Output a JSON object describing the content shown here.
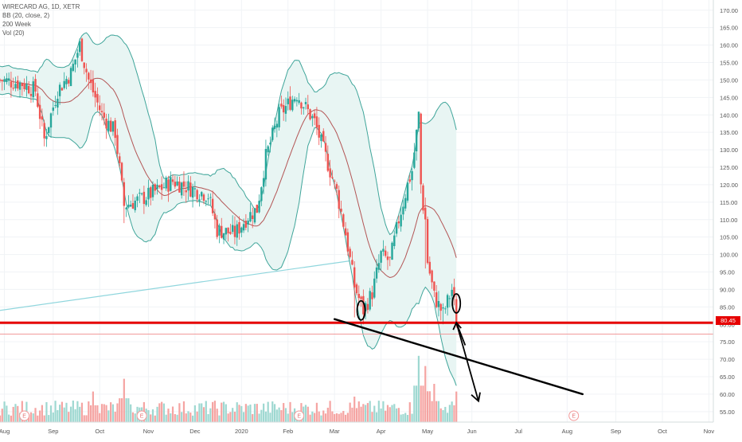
{
  "legend": {
    "symbol": "WIRECARD AG, 1D, XETR",
    "bb": "BB (20, close, 2)",
    "ma": "200 Week",
    "vol": "Vol (20)"
  },
  "last_price": "80.45",
  "colors": {
    "up": "#26a69a",
    "down": "#ef5350",
    "bb_band": "#3fa59a",
    "bb_fill": "#e8f5f3",
    "bb_basis": "#b35555",
    "ma200": "#8fd6dd",
    "support": "#e60000",
    "support_thin": "#f29a9a",
    "trendline": "#000000"
  },
  "chart_data": {
    "type": "candlestick",
    "y_axis": {
      "min": 52,
      "max": 172,
      "ticks": [
        170,
        165,
        160,
        155,
        150,
        145,
        140,
        135,
        130,
        125,
        120,
        115,
        110,
        105,
        100,
        95,
        90,
        85,
        80,
        75,
        70,
        65,
        60,
        55
      ],
      "tick_labels": [
        "170.00",
        "165.00",
        "160.00",
        "155.00",
        "150.00",
        "145.00",
        "140.00",
        "135.00",
        "130.00",
        "125.00",
        "120.00",
        "115.00",
        "110.00",
        "105.00",
        "100.00",
        "95.00",
        "90.00",
        "85.00",
        "80.00",
        "75.00",
        "70.00",
        "65.00",
        "60.00",
        "55.00"
      ]
    },
    "x_axis": {
      "labels": [
        "Aug",
        "Sep",
        "Oct",
        "Nov",
        "Dec",
        "2020",
        "Feb",
        "Mar",
        "Apr",
        "May",
        "Jun",
        "Jul",
        "Aug",
        "Sep",
        "Oct",
        "Nov"
      ],
      "label_day_index": [
        2,
        24,
        45,
        67,
        88,
        109,
        130,
        151,
        172,
        193,
        213,
        234,
        256,
        278,
        299,
        320
      ]
    },
    "price_keypoints": [
      [
        0,
        150
      ],
      [
        10,
        149
      ],
      [
        16,
        147
      ],
      [
        20,
        133
      ],
      [
        26,
        147
      ],
      [
        32,
        152
      ],
      [
        36,
        160
      ],
      [
        40,
        150
      ],
      [
        46,
        140
      ],
      [
        52,
        135
      ],
      [
        56,
        114
      ],
      [
        64,
        116
      ],
      [
        70,
        118
      ],
      [
        78,
        121
      ],
      [
        86,
        119
      ],
      [
        94,
        117
      ],
      [
        98,
        107
      ],
      [
        106,
        106
      ],
      [
        112,
        111
      ],
      [
        116,
        113
      ],
      [
        120,
        128
      ],
      [
        126,
        140
      ],
      [
        134,
        146
      ],
      [
        142,
        138
      ],
      [
        146,
        130
      ],
      [
        152,
        118
      ],
      [
        156,
        106
      ],
      [
        160,
        91
      ],
      [
        164,
        84
      ],
      [
        168,
        89
      ],
      [
        172,
        100
      ],
      [
        176,
        98
      ],
      [
        180,
        110
      ],
      [
        184,
        120
      ],
      [
        186,
        124
      ],
      [
        189,
        140
      ],
      [
        190,
        120
      ],
      [
        191,
        114
      ],
      [
        192,
        110
      ],
      [
        193,
        98
      ],
      [
        196,
        88
      ],
      [
        200,
        83
      ],
      [
        204,
        90
      ],
      [
        205,
        86
      ],
      [
        206,
        80.5
      ]
    ],
    "volume_events": [
      [
        42,
        2.4
      ],
      [
        56,
        3.4
      ],
      [
        160,
        2.0
      ],
      [
        189,
        5.2
      ],
      [
        192,
        4.4
      ],
      [
        196,
        3.0
      ],
      [
        206,
        2.4
      ]
    ],
    "bollinger": {
      "period": 20,
      "stddev": 2,
      "source": "close"
    },
    "ma200_week": {
      "start": 84,
      "end": 102.5
    },
    "support_level": 80.45,
    "support_level_thin": 77.2,
    "trendline": {
      "from": [
        151,
        81.5
      ],
      "to": [
        263,
        60
      ]
    },
    "projection": {
      "lines": [
        [
          [
            206,
            80.5
          ],
          [
            216,
            58
          ]
        ],
        [
          [
            206,
            80.5
          ],
          [
            210,
            74
          ]
        ]
      ],
      "circles": [
        [
          163,
          84
        ],
        [
          206,
          86
        ]
      ]
    },
    "earnings_markers": [
      [
        11,
        "E"
      ],
      [
        64,
        "E"
      ],
      [
        135,
        "E"
      ],
      [
        259,
        "E"
      ]
    ],
    "ylim": [
      52,
      172
    ]
  }
}
